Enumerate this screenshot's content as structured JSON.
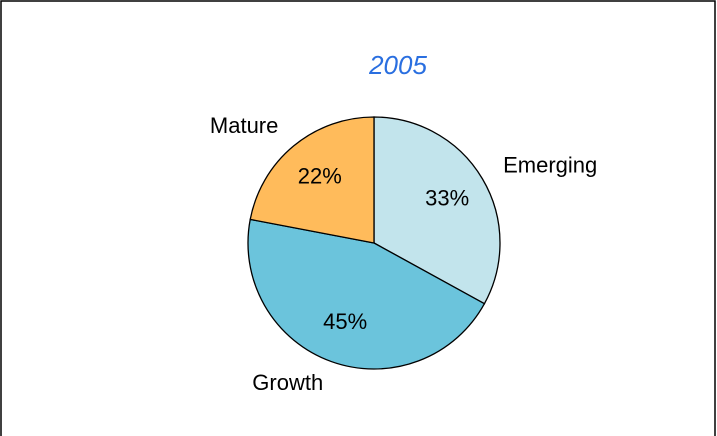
{
  "chart_data": {
    "type": "pie",
    "title": "2005",
    "categories": [
      "Emerging",
      "Growth",
      "Mature"
    ],
    "values": [
      33,
      45,
      22
    ],
    "value_labels": [
      "33%",
      "45%",
      "22%"
    ],
    "colors": [
      "#c2e4ec",
      "#6bc4dc",
      "#ffbb5b"
    ]
  }
}
